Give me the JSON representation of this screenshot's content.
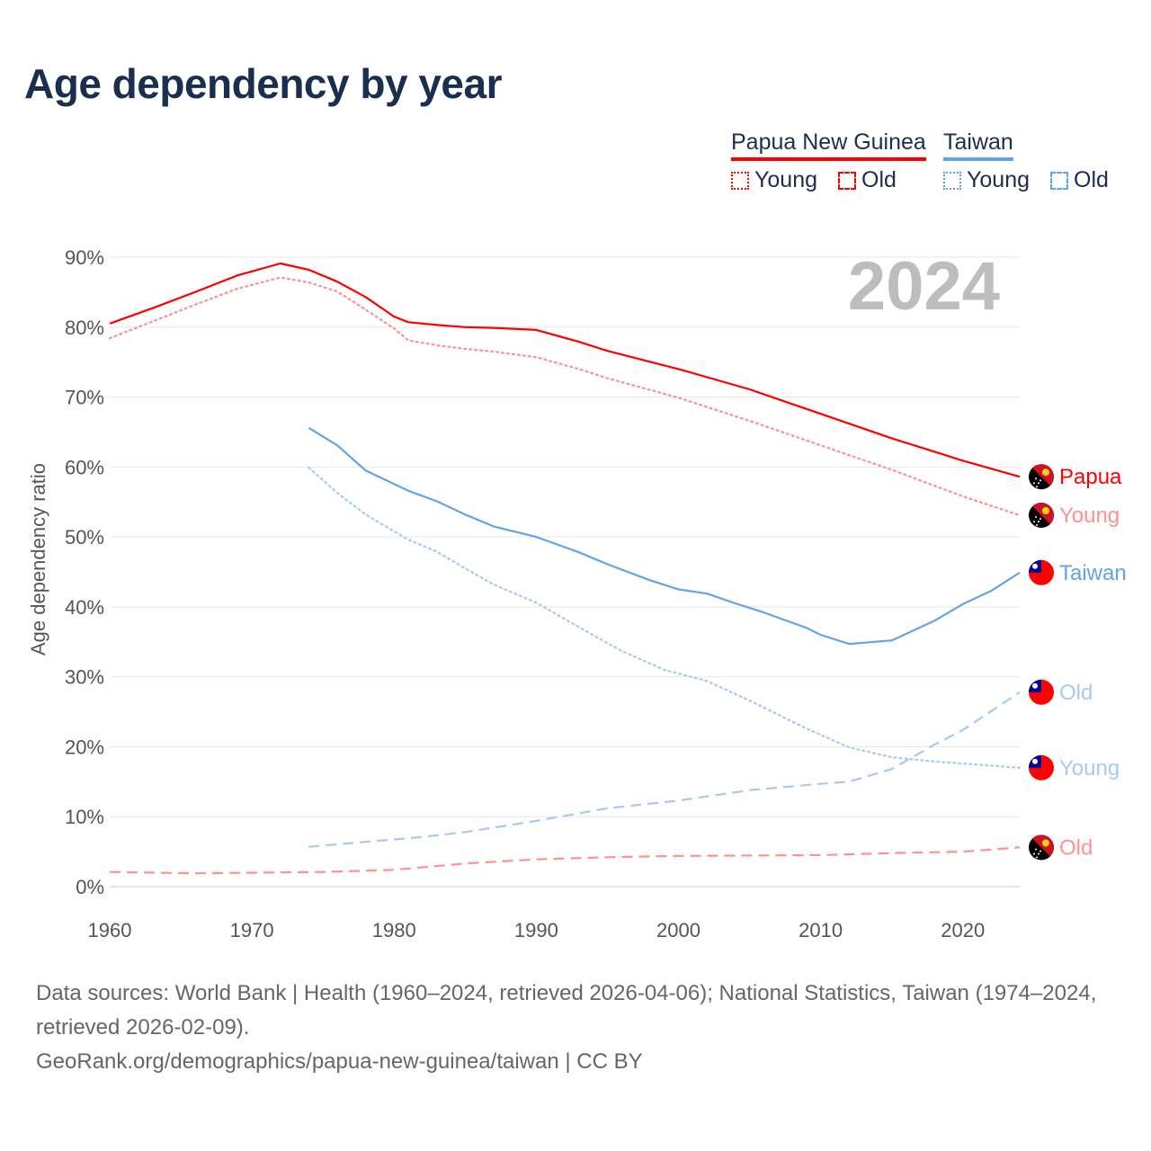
{
  "title": "Age dependency by year",
  "legend": {
    "groups": [
      {
        "country": "Papua New Guinea",
        "color": "#ff0000",
        "young_label": "Young",
        "old_label": "Old"
      },
      {
        "country": "Taiwan",
        "color": "#62a3ea",
        "young_label": "Young",
        "old_label": "Old"
      }
    ]
  },
  "chart_data": {
    "type": "line",
    "title": "Age dependency by year",
    "ylabel": "Age dependency ratio",
    "xlabel": "",
    "xlim": [
      1960,
      2024
    ],
    "ylim": [
      0,
      90
    ],
    "x_ticks": [
      "1960",
      "1970",
      "1980",
      "1990",
      "2000",
      "2010",
      "2020"
    ],
    "y_ticks": [
      "0%",
      "10%",
      "20%",
      "30%",
      "40%",
      "50%",
      "60%",
      "70%",
      "80%",
      "90%"
    ],
    "year_watermark": "2024",
    "grid": true,
    "series": [
      {
        "name": "Papua New Guinea",
        "end_label": "Papua",
        "flag": "png",
        "style": "solid",
        "color": "#ff0000",
        "x": [
          1960,
          1963,
          1966,
          1969,
          1972,
          1974,
          1976,
          1978,
          1980,
          1981,
          1983,
          1985,
          1987,
          1990,
          1993,
          1995,
          2000,
          2005,
          2010,
          2015,
          2020,
          2024
        ],
        "y": [
          80.5,
          82.7,
          85,
          87.4,
          89.1,
          88.2,
          86.5,
          84.3,
          81.5,
          80.7,
          80.3,
          80,
          79.9,
          79.6,
          77.9,
          76.6,
          74,
          71.1,
          67.6,
          64.1,
          60.9,
          58.6
        ]
      },
      {
        "name": "Papua New Guinea Young",
        "end_label": "Young",
        "flag": "png",
        "style": "dotted",
        "color": "#ff9191",
        "x": [
          1960,
          1963,
          1966,
          1969,
          1972,
          1974,
          1976,
          1978,
          1980,
          1981,
          1983,
          1985,
          1987,
          1990,
          1993,
          1995,
          2000,
          2005,
          2010,
          2015,
          2020,
          2024
        ],
        "y": [
          78.4,
          80.8,
          83.2,
          85.5,
          87.1,
          86.4,
          85.1,
          82.5,
          79.8,
          78.1,
          77.4,
          76.9,
          76.5,
          75.7,
          74,
          72.7,
          69.9,
          66.6,
          63.1,
          59.6,
          55.8,
          53.1
        ]
      },
      {
        "name": "Papua New Guinea Old",
        "end_label": "Old",
        "flag": "png",
        "style": "dashed",
        "color": "#ff9191",
        "x": [
          1960,
          1966,
          1975,
          1980,
          1985,
          1990,
          1995,
          2000,
          2010,
          2015,
          2020,
          2024
        ],
        "y": [
          2.1,
          1.9,
          2.1,
          2.4,
          3.3,
          3.9,
          4.2,
          4.4,
          4.5,
          4.8,
          5.0,
          5.6
        ]
      },
      {
        "name": "Taiwan",
        "end_label": "Taiwan",
        "flag": "tw",
        "style": "solid",
        "color": "#62a3ea",
        "x": [
          1974,
          1976,
          1978,
          1981,
          1983,
          1985,
          1987,
          1990,
          1993,
          1995,
          1998,
          2000,
          2002,
          2004,
          2006,
          2009,
          2010,
          2012,
          2015,
          2018,
          2020,
          2022,
          2024
        ],
        "y": [
          65.6,
          63.1,
          59.5,
          56.6,
          55.1,
          53.2,
          51.5,
          50,
          47.8,
          46.1,
          43.8,
          42.5,
          41.9,
          40.5,
          39.2,
          37,
          36,
          34.7,
          35.2,
          38,
          40.4,
          42.3,
          44.9
        ]
      },
      {
        "name": "Taiwan Old",
        "end_label": "Old",
        "flag": "tw",
        "style": "dashed",
        "color": "#a7c9f2",
        "x": [
          1974,
          1978,
          1982,
          1985,
          1990,
          1995,
          2000,
          2005,
          2010,
          2012,
          2015,
          2018,
          2020,
          2024
        ],
        "y": [
          5.7,
          6.4,
          7.1,
          7.8,
          9.4,
          11.2,
          12.3,
          13.8,
          14.7,
          15,
          16.8,
          20.3,
          22.4,
          27.8
        ]
      },
      {
        "name": "Taiwan Young",
        "end_label": "Young",
        "flag": "tw",
        "style": "dotted",
        "color": "#a7c9f2",
        "x": [
          1974,
          1976,
          1978,
          1981,
          1983,
          1985,
          1987,
          1990,
          1993,
          1996,
          1999,
          2002,
          2005,
          2009,
          2012,
          2015,
          2018,
          2020,
          2024
        ],
        "y": [
          59.9,
          56.3,
          53.2,
          49.6,
          47.9,
          45.5,
          43.2,
          40.6,
          37.1,
          33.7,
          31,
          29.4,
          26.6,
          22.6,
          19.9,
          18.5,
          17.9,
          17.6,
          17
        ]
      }
    ]
  },
  "footer": {
    "sources": "Data sources: World Bank | Health (1960–2024, retrieved 2026-04-06); National Statistics, Taiwan (1974–2024, retrieved 2026-02-09).",
    "credit": "GeoRank.org/demographics/papua-new-guinea/taiwan | CC BY"
  }
}
